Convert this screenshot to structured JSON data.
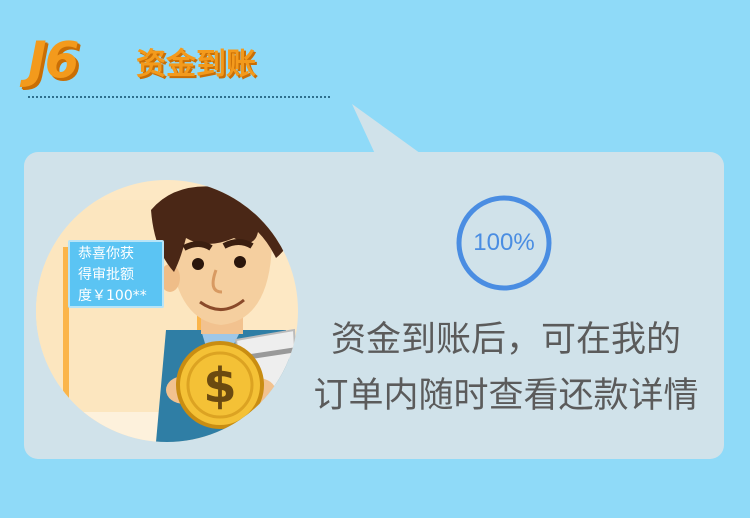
{
  "step": {
    "number": "J6",
    "title": "资金到账"
  },
  "illustration": {
    "note_lines": [
      "恭喜你获",
      "得审批额",
      "度￥100**"
    ],
    "coin_symbol": "$"
  },
  "progress": {
    "label": "100%",
    "value": 1.0
  },
  "description": {
    "lines": [
      "资金到账后，可在我的",
      "订单内随时查看还款详情"
    ]
  },
  "colors": {
    "background": "#8fdaf8",
    "card": "#d0e2ea",
    "accent_orange": "#f39a1c",
    "progress_blue": "#4a8de2",
    "text_gray": "#5b5b5b"
  }
}
